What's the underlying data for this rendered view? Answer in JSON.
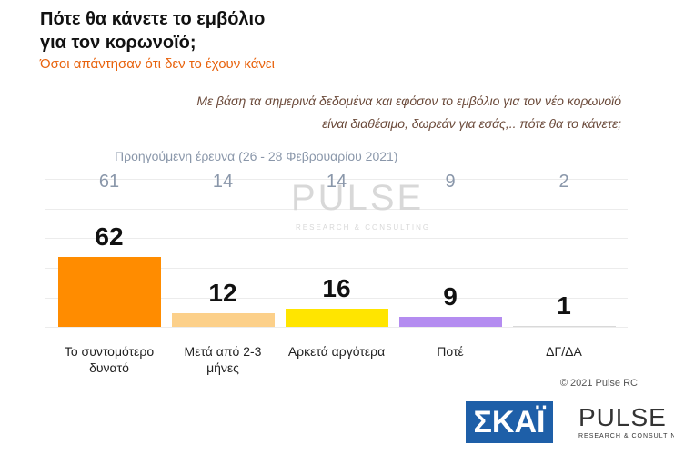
{
  "chart_data": {
    "type": "bar",
    "title": [
      "Πότε θα κάνετε το εμβόλιο",
      "για τον κορωνοϊό;"
    ],
    "subtitle": "Όσοι απάντησαν ότι δεν το έχουν κάνει",
    "question": [
      "Με βάση τα σημερινά δεδομένα και εφόσον το εμβόλιο για τον νέο κορωνοϊό",
      "είναι διαθέσιμο, δωρεάν για εσάς,.. πότε θα το κάνετε;"
    ],
    "previous_label": "Προηγούμενη έρευνα  (26 - 28 Φεβρουαρίου 2021)",
    "categories": [
      "Το συντομότερο δυνατό",
      "Μετά από 2-3 μήνες",
      "Αρκετά αργότερα",
      "Ποτέ",
      "ΔΓ/ΔΑ"
    ],
    "values": [
      62,
      12,
      16,
      9,
      1
    ],
    "previous_values": [
      61,
      14,
      14,
      9,
      2
    ],
    "colors": [
      "#ff8c00",
      "#fcd08a",
      "#ffe500",
      "#b48cf0",
      "#d9d9d9"
    ],
    "ylim": [
      0,
      100
    ],
    "copyright": "© 2021 Pulse RC",
    "logos": {
      "skai": "ΣΚΑΪ",
      "pulse": "PULSE",
      "pulse_sub": "RESEARCH & CONSULTING"
    }
  }
}
